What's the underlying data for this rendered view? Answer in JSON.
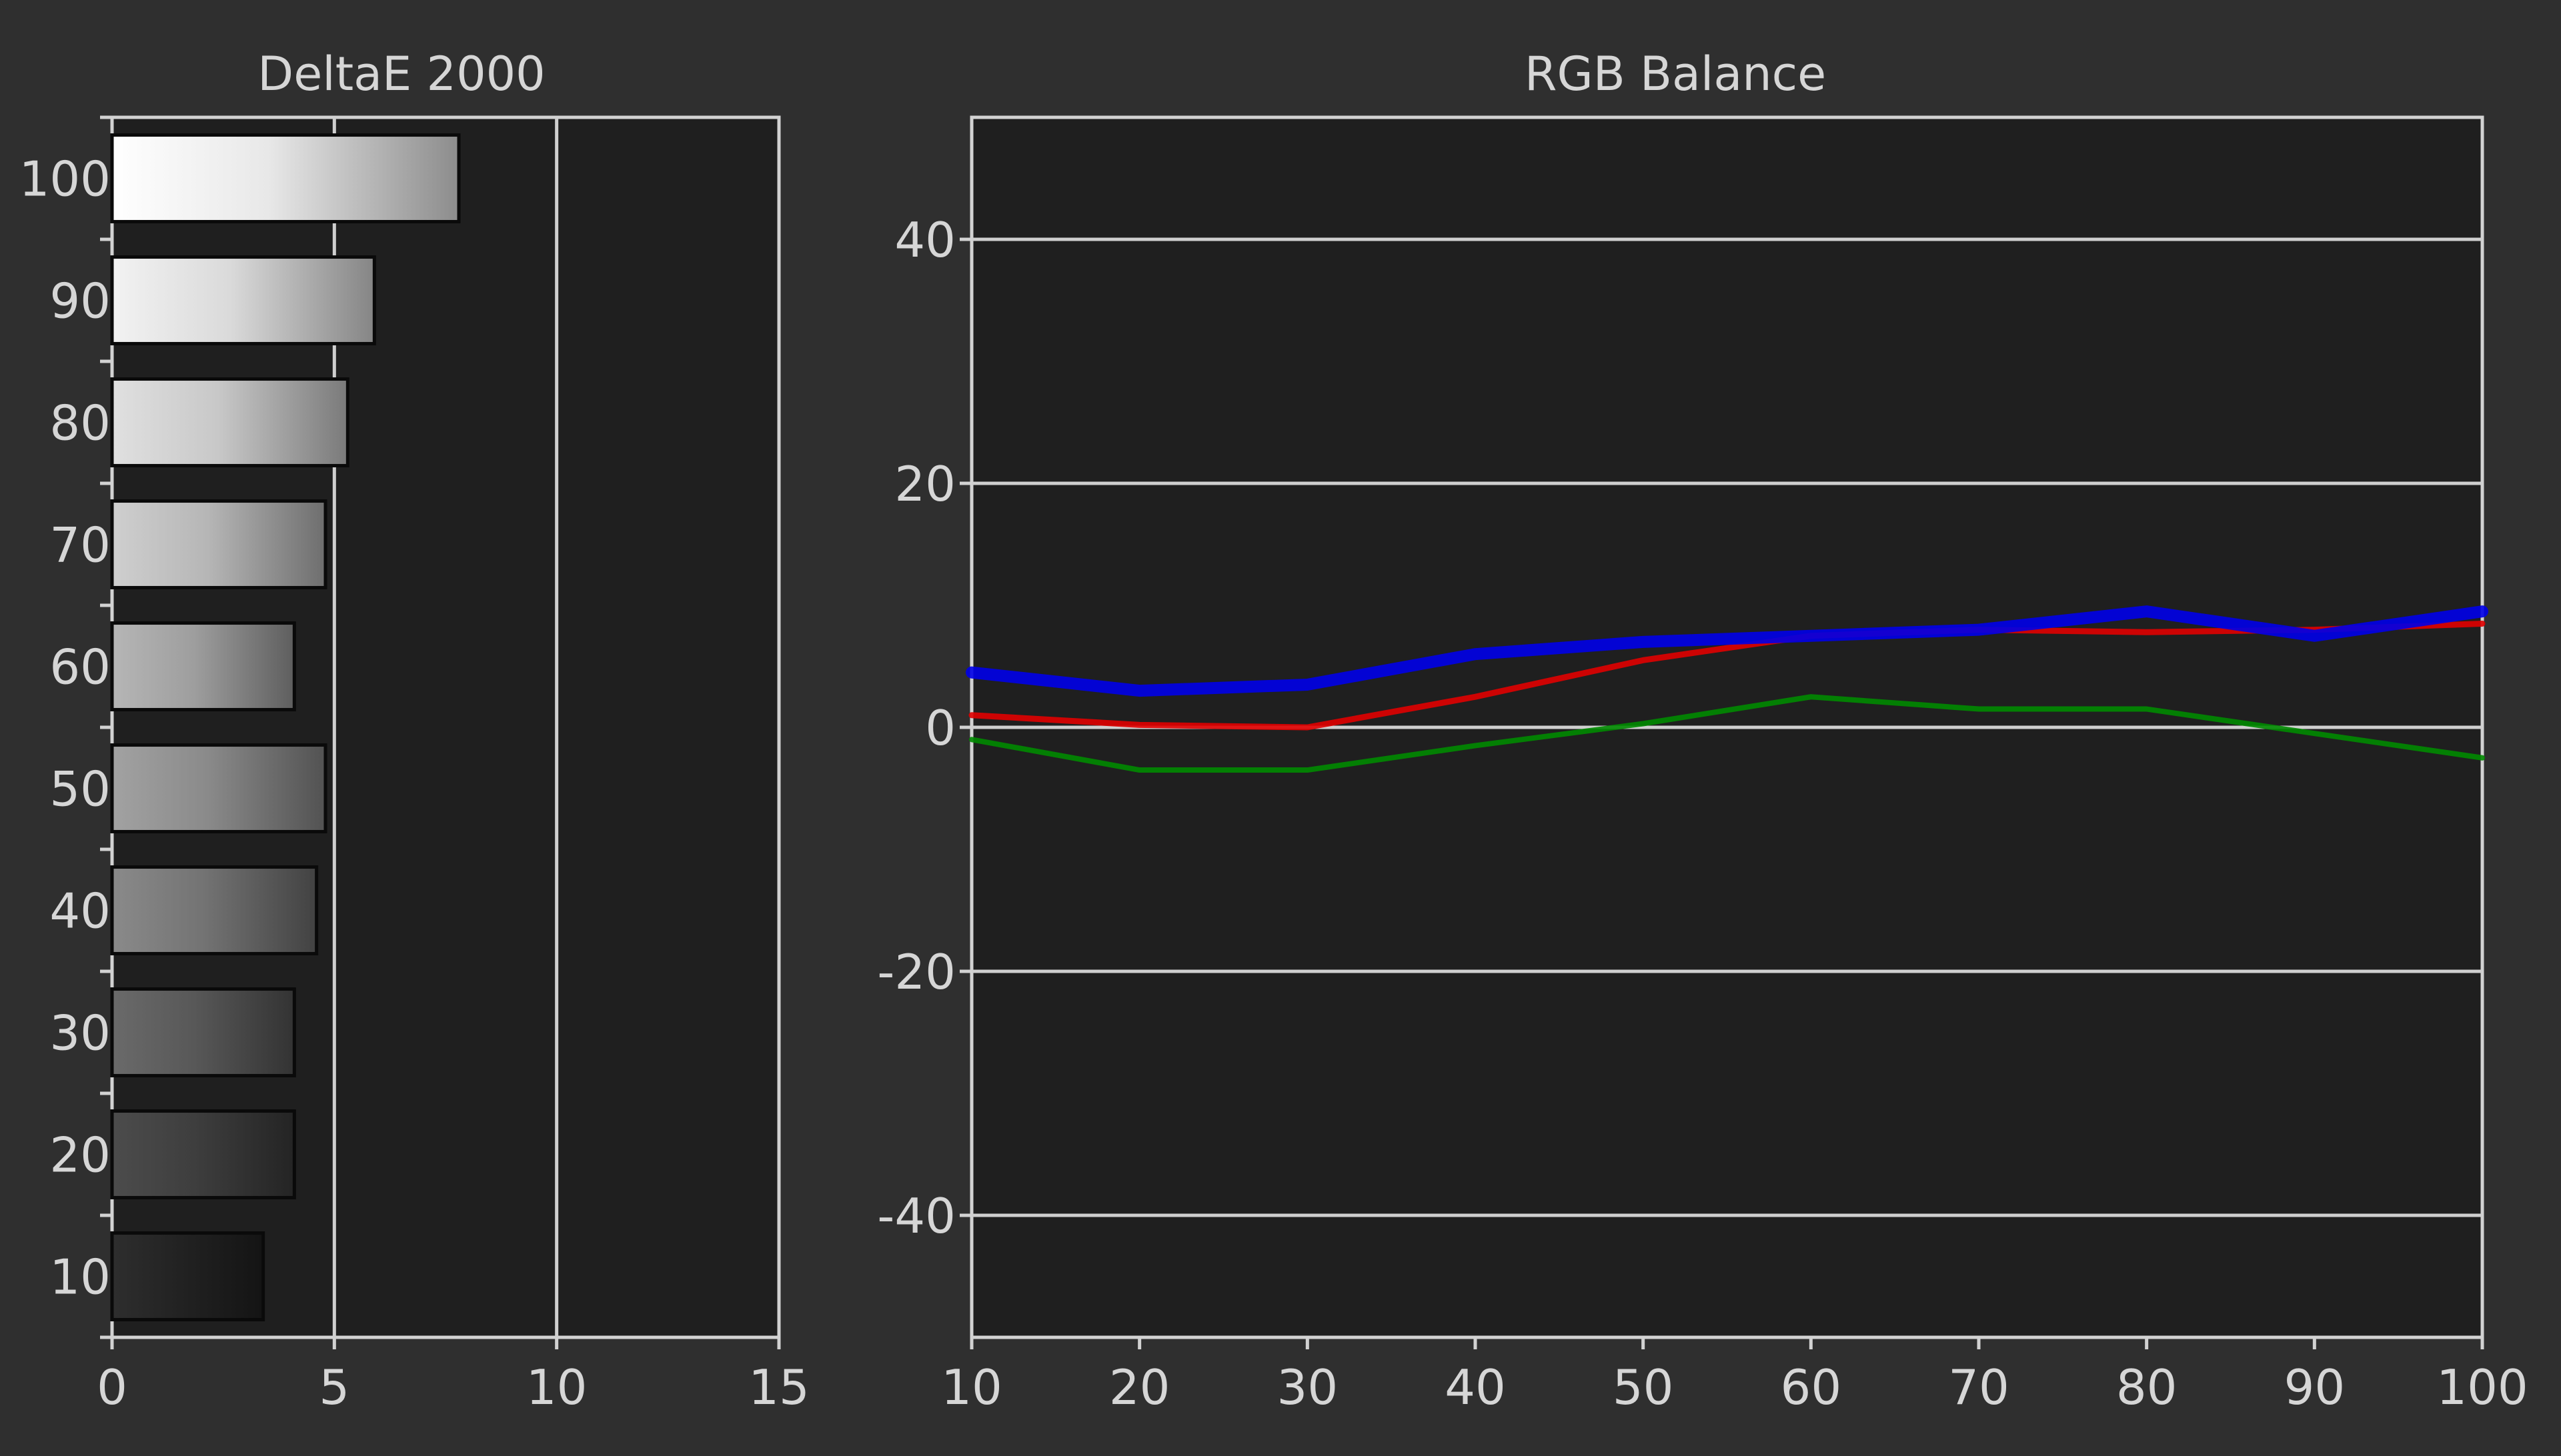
{
  "chart_data": [
    {
      "type": "bar",
      "orientation": "horizontal",
      "title": "DeltaE 2000",
      "xlabel": "",
      "ylabel": "",
      "categories": [
        "100",
        "90",
        "80",
        "70",
        "60",
        "50",
        "40",
        "30",
        "20",
        "10"
      ],
      "values": [
        7.8,
        5.9,
        5.3,
        4.8,
        4.1,
        4.8,
        4.6,
        4.1,
        4.1,
        3.4
      ],
      "xlim": [
        0,
        15
      ],
      "xticks": [
        "0",
        "5",
        "10",
        "15"
      ],
      "grid": true,
      "bar_gradient": [
        [
          "#ffffff",
          "#e8e8e8",
          "#8c8c8c"
        ],
        [
          "#f2f2f2",
          "#dadada",
          "#858585"
        ],
        [
          "#e0e0e0",
          "#c8c8c8",
          "#7a7a7a"
        ],
        [
          "#cfcfcf",
          "#b6b6b6",
          "#6e6e6e"
        ],
        [
          "#b6b6b6",
          "#9e9e9e",
          "#5e5e5e"
        ],
        [
          "#a2a2a2",
          "#8a8a8a",
          "#525252"
        ],
        [
          "#8a8a8a",
          "#737373",
          "#424242"
        ],
        [
          "#6a6a6a",
          "#585858",
          "#333333"
        ],
        [
          "#4c4c4c",
          "#3e3e3e",
          "#242424"
        ],
        [
          "#2e2e2e",
          "#222222",
          "#141414"
        ]
      ]
    },
    {
      "type": "line",
      "title": "RGB Balance",
      "xlabel": "",
      "ylabel": "",
      "x": [
        10,
        20,
        30,
        40,
        50,
        60,
        70,
        80,
        90,
        100
      ],
      "xticks": [
        "10",
        "20",
        "30",
        "40",
        "50",
        "60",
        "70",
        "80",
        "90",
        "100"
      ],
      "yticks": [
        "40",
        "20",
        "0",
        "-20",
        "-40"
      ],
      "xlim": [
        10,
        100
      ],
      "ylim": [
        -50,
        50
      ],
      "grid": true,
      "series": [
        {
          "color": "#008a00",
          "width": 8,
          "values": [
            -1,
            -3.5,
            -3.5,
            -1.5,
            0.3,
            2.5,
            1.5,
            1.5,
            -0.5,
            -2.5
          ]
        },
        {
          "color": "#e00000",
          "width": 9,
          "values": [
            1,
            0.2,
            0,
            2.5,
            5.5,
            7.5,
            8,
            7.8,
            8,
            8.5
          ]
        },
        {
          "color": "#0000e8",
          "width": 18,
          "values": [
            4.5,
            3,
            3.5,
            6,
            7,
            7.5,
            8,
            9.5,
            7.5,
            9.5
          ]
        }
      ]
    }
  ]
}
